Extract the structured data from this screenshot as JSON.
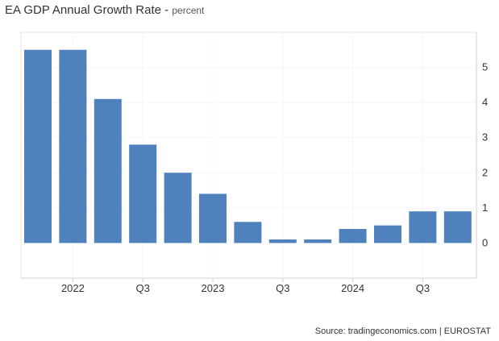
{
  "chart_data": {
    "type": "bar",
    "title": "EA GDP Annual Growth Rate",
    "subtitle": "percent",
    "categories": [
      "2021 Q4",
      "2022 Q1",
      "2022 Q2",
      "2022 Q3",
      "2022 Q4",
      "2023 Q1",
      "2023 Q2",
      "2023 Q3",
      "2023 Q4",
      "2024 Q1",
      "2024 Q2",
      "2024 Q3",
      "2024 Q4"
    ],
    "values": [
      5.5,
      5.5,
      4.1,
      2.8,
      2.0,
      1.4,
      0.6,
      0.1,
      0.1,
      0.4,
      0.5,
      0.9,
      0.9
    ],
    "x_tick_labels": [
      {
        "label": "2022",
        "at_category": "2022 Q1"
      },
      {
        "label": "Q3",
        "at_category": "2022 Q3"
      },
      {
        "label": "2023",
        "at_category": "2023 Q1"
      },
      {
        "label": "Q3",
        "at_category": "2023 Q3"
      },
      {
        "label": "2024",
        "at_category": "2024 Q1"
      },
      {
        "label": "Q3",
        "at_category": "2024 Q3"
      }
    ],
    "y_ticks": [
      0,
      1,
      2,
      3,
      4,
      5
    ],
    "ylim": [
      -1,
      6
    ],
    "y_axis_side": "right",
    "grid": true,
    "bar_color": "#4f81bd",
    "source": "Source: tradingeconomics.com | EUROSTAT"
  }
}
